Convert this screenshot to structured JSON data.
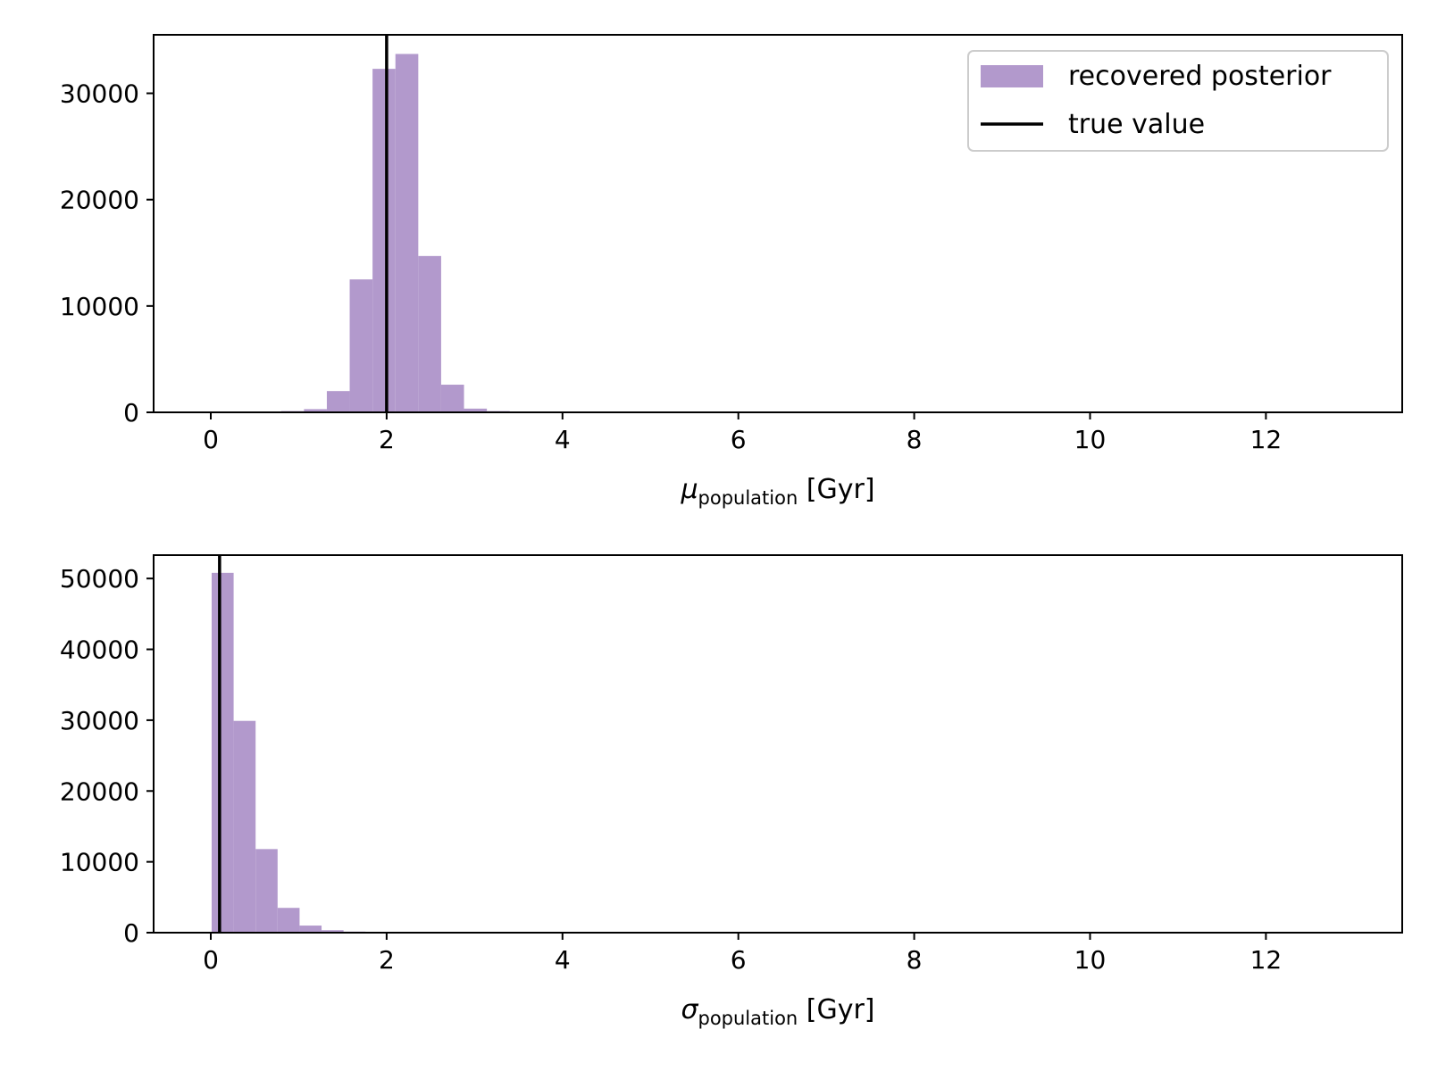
{
  "colors": {
    "histogram_fill": "#b299cc",
    "true_value_line": "#000000",
    "axes": "#000000",
    "background": "#ffffff"
  },
  "legend": {
    "placement": "top-right",
    "items": [
      {
        "label": "recovered posterior",
        "kind": "patch"
      },
      {
        "label": "true value",
        "kind": "line"
      }
    ]
  },
  "chart_data": [
    {
      "type": "bar",
      "subtype": "histogram",
      "xlabel": {
        "symbol": "μ",
        "subscript": "population",
        "unit": "[Gyr]"
      },
      "ylabel": "",
      "xlim": [
        -0.65,
        13.55
      ],
      "ylim": [
        0,
        35500
      ],
      "xticks": [
        0,
        2,
        4,
        6,
        8,
        10,
        12
      ],
      "yticks": [
        0,
        10000,
        20000,
        30000
      ],
      "grid": false,
      "bin_width": 0.26,
      "bins": [
        {
          "x0": 0.02,
          "value": 40
        },
        {
          "x0": 0.28,
          "value": 60
        },
        {
          "x0": 0.54,
          "value": 80
        },
        {
          "x0": 0.8,
          "value": 120
        },
        {
          "x0": 1.06,
          "value": 300
        },
        {
          "x0": 1.32,
          "value": 2000
        },
        {
          "x0": 1.58,
          "value": 12500
        },
        {
          "x0": 1.84,
          "value": 32300
        },
        {
          "x0": 2.1,
          "value": 33700
        },
        {
          "x0": 2.36,
          "value": 14700
        },
        {
          "x0": 2.62,
          "value": 2600
        },
        {
          "x0": 2.88,
          "value": 350
        },
        {
          "x0": 3.14,
          "value": 120
        },
        {
          "x0": 3.4,
          "value": 40
        }
      ],
      "true_value": 2.0,
      "has_legend": true
    },
    {
      "type": "bar",
      "subtype": "histogram",
      "xlabel": {
        "symbol": "σ",
        "subscript": "population",
        "unit": "[Gyr]"
      },
      "ylabel": "",
      "xlim": [
        -0.65,
        13.55
      ],
      "ylim": [
        0,
        53300
      ],
      "xticks": [
        0,
        2,
        4,
        6,
        8,
        10,
        12
      ],
      "yticks": [
        0,
        10000,
        20000,
        30000,
        40000,
        50000
      ],
      "grid": false,
      "bin_width": 0.25,
      "bins": [
        {
          "x0": 0.01,
          "value": 50800
        },
        {
          "x0": 0.26,
          "value": 29900
        },
        {
          "x0": 0.51,
          "value": 11800
        },
        {
          "x0": 0.76,
          "value": 3500
        },
        {
          "x0": 1.01,
          "value": 1000
        },
        {
          "x0": 1.26,
          "value": 350
        },
        {
          "x0": 1.51,
          "value": 150
        },
        {
          "x0": 1.76,
          "value": 60
        }
      ],
      "true_value": 0.1,
      "has_legend": false
    }
  ]
}
